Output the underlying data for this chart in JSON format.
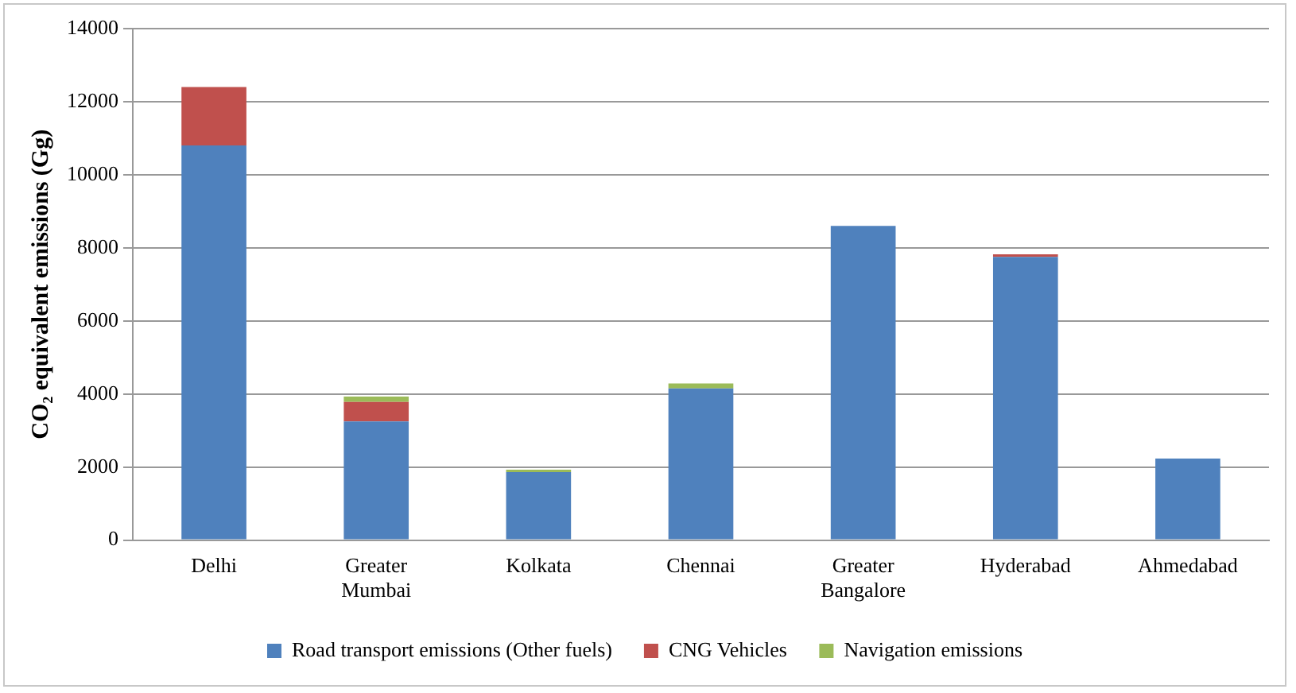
{
  "chart_data": {
    "type": "bar",
    "stacked": true,
    "ylabel": "CO₂ equivalent emissions (Gg)",
    "categories": [
      "Delhi",
      "Greater Mumbai",
      "Kolkata",
      "Chennai",
      "Greater Bangalore",
      "Hyderabad",
      "Ahmedabad"
    ],
    "series": [
      {
        "name": "Road transport emissions (Other fuels)",
        "color": "#4f81bd",
        "values": [
          10800,
          3250,
          1860,
          4150,
          8600,
          7750,
          2230
        ]
      },
      {
        "name": "CNG Vehicles",
        "color": "#c0504d",
        "values": [
          1600,
          530,
          null,
          null,
          null,
          70,
          null
        ]
      },
      {
        "name": "Navigation emissions",
        "color": "#9bbb59",
        "values": [
          null,
          150,
          70,
          140,
          null,
          null,
          null
        ]
      }
    ],
    "ylim": [
      0,
      14000
    ],
    "yticks": [
      0,
      2000,
      4000,
      6000,
      8000,
      10000,
      12000,
      14000
    ],
    "grid": "y",
    "legend": "bottom"
  }
}
